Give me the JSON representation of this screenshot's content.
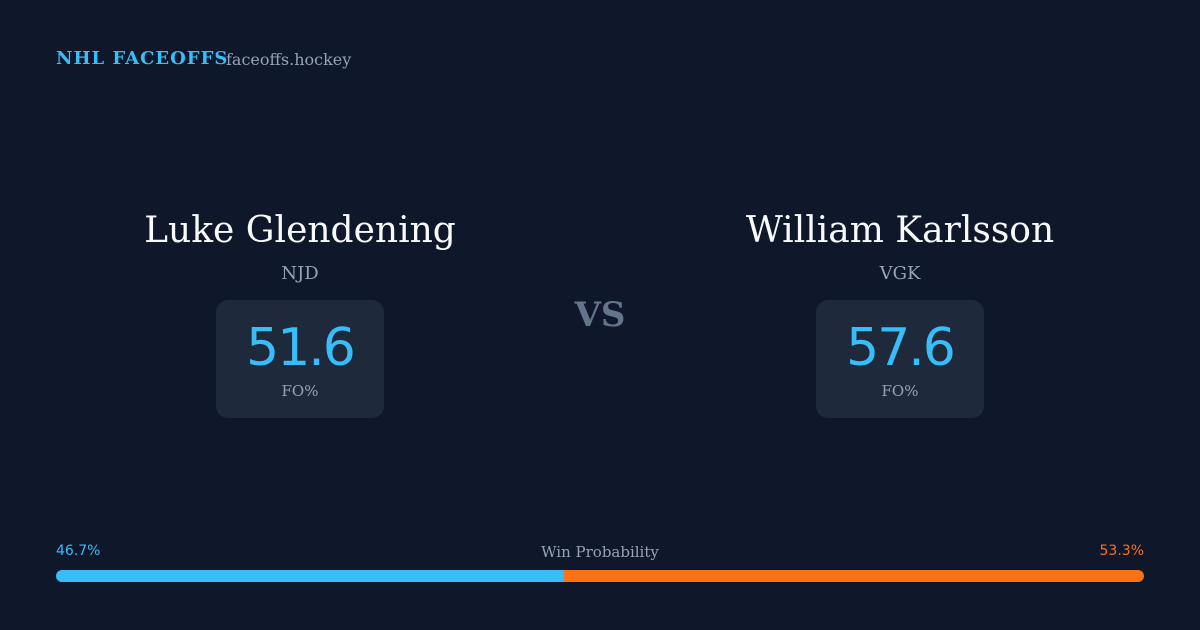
{
  "header": {
    "brand": "NHL FACEOFFS",
    "site": "faceoffs.hockey"
  },
  "players": [
    {
      "name": "Luke Glendening",
      "team": "NJD",
      "fo_pct": 51.6,
      "fo_label": "FO%"
    },
    {
      "name": "William Karlsson",
      "team": "VGK",
      "fo_pct": 57.6,
      "fo_label": "FO%"
    }
  ],
  "vs": "VS",
  "win_probability": {
    "label": "Win Probability",
    "values": [
      46.7,
      53.3
    ],
    "value_labels": [
      "46.7%",
      "53.3%"
    ],
    "colors": [
      "#38bdf8",
      "#f97316"
    ]
  }
}
